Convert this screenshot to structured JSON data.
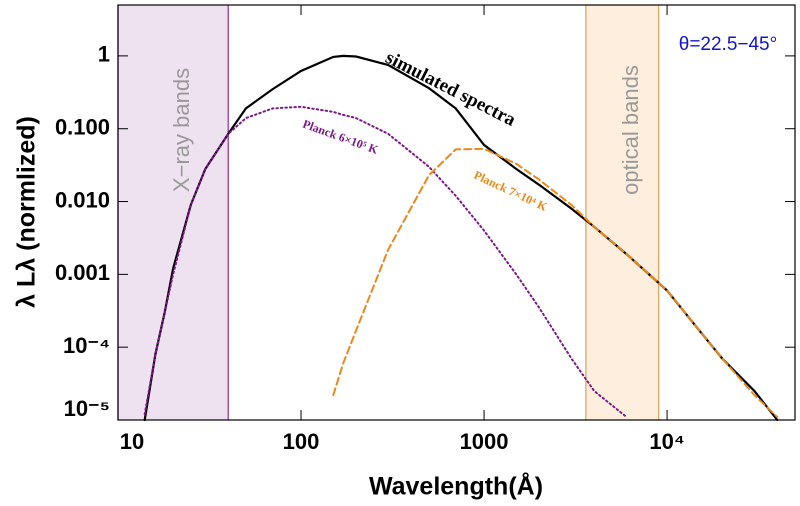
{
  "chart_data": {
    "type": "line",
    "xlabel": "Wavelength(Å)",
    "ylabel": "λ Lλ (normlized)",
    "log_x": true,
    "log_y": true,
    "xlim": [
      10,
      50000
    ],
    "ylim": [
      1e-05,
      5
    ],
    "xticks": [
      10,
      100,
      1000,
      {
        "value": 10000,
        "label": "10⁴"
      }
    ],
    "yticks": [
      1,
      {
        "value": 0.1,
        "label": "0.100"
      },
      {
        "value": 0.01,
        "label": "0.010"
      },
      0.001,
      {
        "value": 0.0001,
        "label": "10⁻⁴"
      },
      {
        "value": 1e-05,
        "label": "10⁻⁵"
      }
    ],
    "x": [
      14,
      16,
      18,
      20,
      25,
      30,
      40,
      50,
      70,
      100,
      150,
      170,
      200,
      300,
      500,
      700,
      1000,
      1500,
      2000,
      3000,
      4000,
      6000,
      10000,
      15000,
      20000,
      30000,
      40000
    ],
    "series": [
      {
        "name": "simulated spectra",
        "color": "#000000",
        "dash": "solid",
        "values": [
          1e-05,
          8e-05,
          0.0003,
          0.0012,
          0.009,
          0.028,
          0.085,
          0.19,
          0.35,
          0.62,
          0.97,
          1.0,
          0.98,
          0.75,
          0.36,
          0.19,
          0.06,
          0.028,
          0.017,
          0.008,
          0.0045,
          0.0019,
          0.0006,
          0.00017,
          7e-05,
          2.5e-05,
          1e-05
        ]
      },
      {
        "name": "Planck 6×10⁵ K",
        "color": "#7b1a86",
        "dash": "dotted",
        "values": [
          1.2e-05,
          8e-05,
          0.0003,
          0.001,
          0.009,
          0.028,
          0.085,
          0.14,
          0.19,
          0.2,
          0.17,
          0.155,
          0.14,
          0.085,
          0.03,
          0.012,
          0.004,
          0.001,
          0.00035,
          7e-05,
          2.5e-05,
          1.1e-05,
          null,
          null,
          null,
          null,
          null
        ]
      },
      {
        "name": "Planck 7×10⁴ K",
        "color": "#e8891c",
        "dash": "dashed",
        "values": [
          null,
          null,
          null,
          null,
          null,
          null,
          null,
          null,
          null,
          null,
          2.2e-05,
          6e-05,
          0.00017,
          0.0022,
          0.023,
          0.052,
          0.053,
          0.033,
          0.02,
          0.009,
          0.0045,
          0.0019,
          0.0006,
          0.00017,
          7e-05,
          2.2e-05,
          1.1e-05
        ]
      }
    ],
    "bands": [
      {
        "label": "X−ray bands",
        "range": [
          10,
          40
        ],
        "color": "#efe2f0",
        "edge": "#8b2a96"
      },
      {
        "label": "optical bands",
        "range": [
          3600,
          9000
        ],
        "color": "#fdeedd",
        "edge": "#d9a255"
      }
    ],
    "annotations": [
      {
        "text": "θ=22.5−45°",
        "color": "#1414c8"
      }
    ]
  }
}
